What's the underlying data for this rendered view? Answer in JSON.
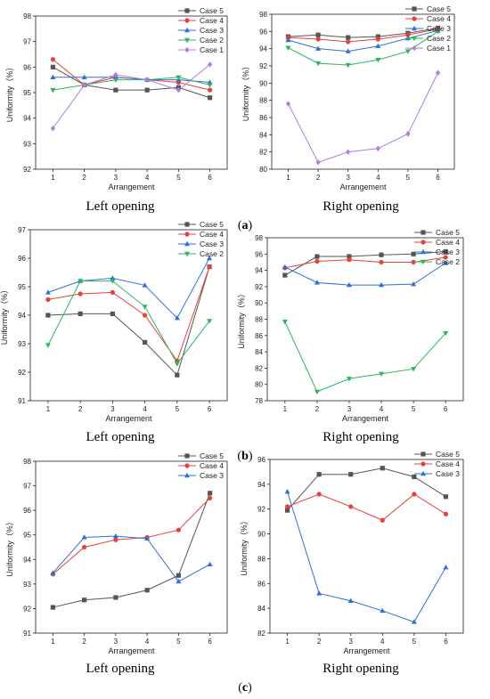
{
  "axis_labels": {
    "x": "Arrangement",
    "y": "Uniformity（%）"
  },
  "colors": {
    "Case 5": "#555555",
    "Case 4": "#e8403a",
    "Case 3": "#2f6fd9",
    "Case 2": "#2fb35e",
    "Case 1": "#b07ee0"
  },
  "markers": {
    "Case 5": "square",
    "Case 4": "circle",
    "Case 3": "triangle-up",
    "Case 2": "triangle-down",
    "Case 1": "diamond"
  },
  "rows": [
    {
      "label": "a",
      "left_caption": "Left opening",
      "right_caption": "Right opening"
    },
    {
      "label": "b",
      "left_caption": "Left opening",
      "right_caption": "Right opening"
    },
    {
      "label": "c",
      "left_caption": "Left opening",
      "right_caption": "Right opening"
    }
  ],
  "chart_data": [
    {
      "type": "line",
      "panel": "a-left",
      "x": [
        1,
        2,
        3,
        4,
        5,
        6
      ],
      "xlabel": "Arrangement",
      "ylabel": "Uniformity（%）",
      "ylim": [
        92,
        98
      ],
      "yticks": [
        92,
        93,
        94,
        95,
        96,
        97,
        98
      ],
      "legend": "top-right",
      "series": [
        {
          "name": "Case 5",
          "values": [
            96.0,
            95.3,
            95.1,
            95.1,
            95.2,
            94.8
          ]
        },
        {
          "name": "Case 4",
          "values": [
            96.3,
            95.3,
            95.6,
            95.5,
            95.4,
            95.1
          ]
        },
        {
          "name": "Case 3",
          "values": [
            95.6,
            95.6,
            95.6,
            95.5,
            95.5,
            95.4
          ]
        },
        {
          "name": "Case 2",
          "values": [
            95.1,
            95.3,
            95.5,
            95.5,
            95.6,
            95.3
          ]
        },
        {
          "name": "Case 1",
          "values": [
            93.6,
            95.3,
            95.7,
            95.5,
            95.1,
            96.1
          ]
        }
      ]
    },
    {
      "type": "line",
      "panel": "a-right",
      "x": [
        1,
        2,
        3,
        4,
        5,
        6
      ],
      "xlabel": "Arrangement",
      "ylabel": "Uniformity（%）",
      "ylim": [
        80,
        98
      ],
      "yticks": [
        80,
        82,
        84,
        86,
        88,
        90,
        92,
        94,
        96,
        98
      ],
      "legend": "top-right",
      "series": [
        {
          "name": "Case 5",
          "values": [
            95.4,
            95.6,
            95.3,
            95.4,
            95.8,
            96.4
          ]
        },
        {
          "name": "Case 4",
          "values": [
            95.3,
            95.1,
            94.8,
            95.1,
            95.6,
            96.3
          ]
        },
        {
          "name": "Case 3",
          "values": [
            95.0,
            94.0,
            93.7,
            94.3,
            95.2,
            96.1
          ]
        },
        {
          "name": "Case 2",
          "values": [
            94.1,
            92.3,
            92.1,
            92.7,
            93.7,
            96.0
          ]
        },
        {
          "name": "Case 1",
          "values": [
            87.6,
            80.8,
            82.0,
            82.4,
            84.1,
            91.2
          ]
        }
      ]
    },
    {
      "type": "line",
      "panel": "b-left",
      "x": [
        1,
        2,
        3,
        4,
        5,
        6
      ],
      "xlabel": "Arrangement",
      "ylabel": "Uniformity（%）",
      "ylim": [
        91,
        97
      ],
      "yticks": [
        91,
        92,
        93,
        94,
        95,
        96,
        97
      ],
      "legend": "top-right",
      "series": [
        {
          "name": "Case 5",
          "values": [
            94.0,
            94.05,
            94.05,
            93.05,
            91.9,
            95.7
          ]
        },
        {
          "name": "Case 4",
          "values": [
            94.55,
            94.75,
            94.8,
            94.0,
            92.4,
            95.7
          ]
        },
        {
          "name": "Case 3",
          "values": [
            94.8,
            95.2,
            95.3,
            95.05,
            93.9,
            96.0
          ]
        },
        {
          "name": "Case 2",
          "values": [
            92.95,
            95.2,
            95.2,
            94.3,
            92.3,
            93.8
          ]
        }
      ]
    },
    {
      "type": "line",
      "panel": "b-right",
      "x": [
        1,
        2,
        3,
        4,
        5,
        6
      ],
      "xlabel": "Arrangement",
      "ylabel": "Uniformity（%）",
      "ylim": [
        78,
        98
      ],
      "yticks": [
        78,
        80,
        82,
        84,
        86,
        88,
        90,
        92,
        94,
        96,
        98
      ],
      "legend": "top-right",
      "series": [
        {
          "name": "Case 5",
          "values": [
            93.4,
            95.7,
            95.7,
            95.9,
            96.0,
            96.3
          ]
        },
        {
          "name": "Case 4",
          "values": [
            94.3,
            95.1,
            95.3,
            95.0,
            95.0,
            95.6
          ]
        },
        {
          "name": "Case 3",
          "values": [
            94.4,
            92.5,
            92.2,
            92.2,
            92.3,
            94.9
          ]
        },
        {
          "name": "Case 2",
          "values": [
            87.7,
            79.1,
            80.7,
            81.3,
            81.9,
            86.3
          ]
        }
      ]
    },
    {
      "type": "line",
      "panel": "c-left",
      "x": [
        1,
        2,
        3,
        4,
        5,
        6
      ],
      "xlabel": "Arrangement",
      "ylabel": "Uniformity（%）",
      "ylim": [
        91,
        98
      ],
      "yticks": [
        91,
        92,
        93,
        94,
        95,
        96,
        97,
        98
      ],
      "legend": "top-right",
      "series": [
        {
          "name": "Case 5",
          "values": [
            92.05,
            92.35,
            92.45,
            92.75,
            93.35,
            96.7
          ]
        },
        {
          "name": "Case 4",
          "values": [
            93.4,
            94.5,
            94.8,
            94.9,
            95.2,
            96.5
          ]
        },
        {
          "name": "Case 3",
          "values": [
            93.45,
            94.9,
            94.95,
            94.85,
            93.1,
            93.8
          ]
        }
      ]
    },
    {
      "type": "line",
      "panel": "c-right",
      "x": [
        1,
        2,
        3,
        4,
        5,
        6
      ],
      "xlabel": "Arrangement",
      "ylabel": "Uniformity（%）",
      "ylim": [
        82,
        96
      ],
      "yticks": [
        82,
        84,
        86,
        88,
        90,
        92,
        94,
        96
      ],
      "legend": "top-right",
      "series": [
        {
          "name": "Case 5",
          "values": [
            91.9,
            94.8,
            94.8,
            95.3,
            94.6,
            93.0
          ]
        },
        {
          "name": "Case 4",
          "values": [
            92.2,
            93.2,
            92.2,
            91.1,
            93.2,
            91.6
          ]
        },
        {
          "name": "Case 3",
          "values": [
            93.4,
            85.2,
            84.6,
            83.8,
            82.9,
            87.3
          ]
        }
      ]
    }
  ]
}
